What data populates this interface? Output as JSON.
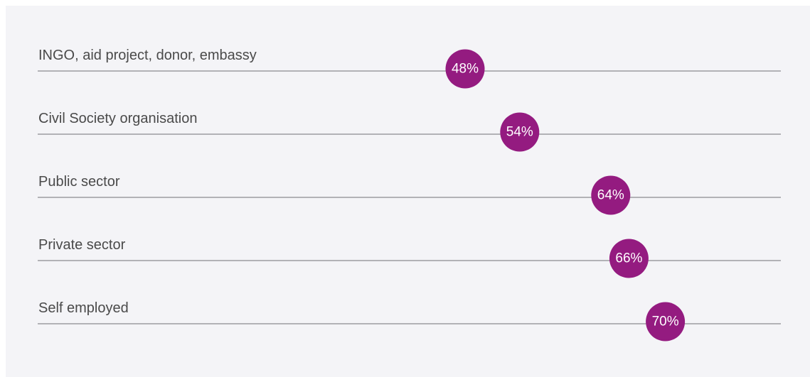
{
  "colors": {
    "panel_background": "#f4f4f7",
    "line": "#9c9ca1",
    "dot": "#941b80",
    "label_text": "#4a4a4a",
    "dot_text": "#ffffff"
  },
  "chart_data": {
    "type": "scatter",
    "title": "",
    "xlabel": "",
    "ylabel": "",
    "xlim": [
      0,
      100
    ],
    "grid": false,
    "categories": [
      "INGO, aid project, donor, embassy",
      "Civil Society organisation",
      "Public sector",
      "Private sector",
      "Self employed"
    ],
    "values": [
      48,
      54,
      64,
      66,
      70
    ],
    "value_labels": [
      "48%",
      "54%",
      "64%",
      "66%",
      "70%"
    ]
  }
}
